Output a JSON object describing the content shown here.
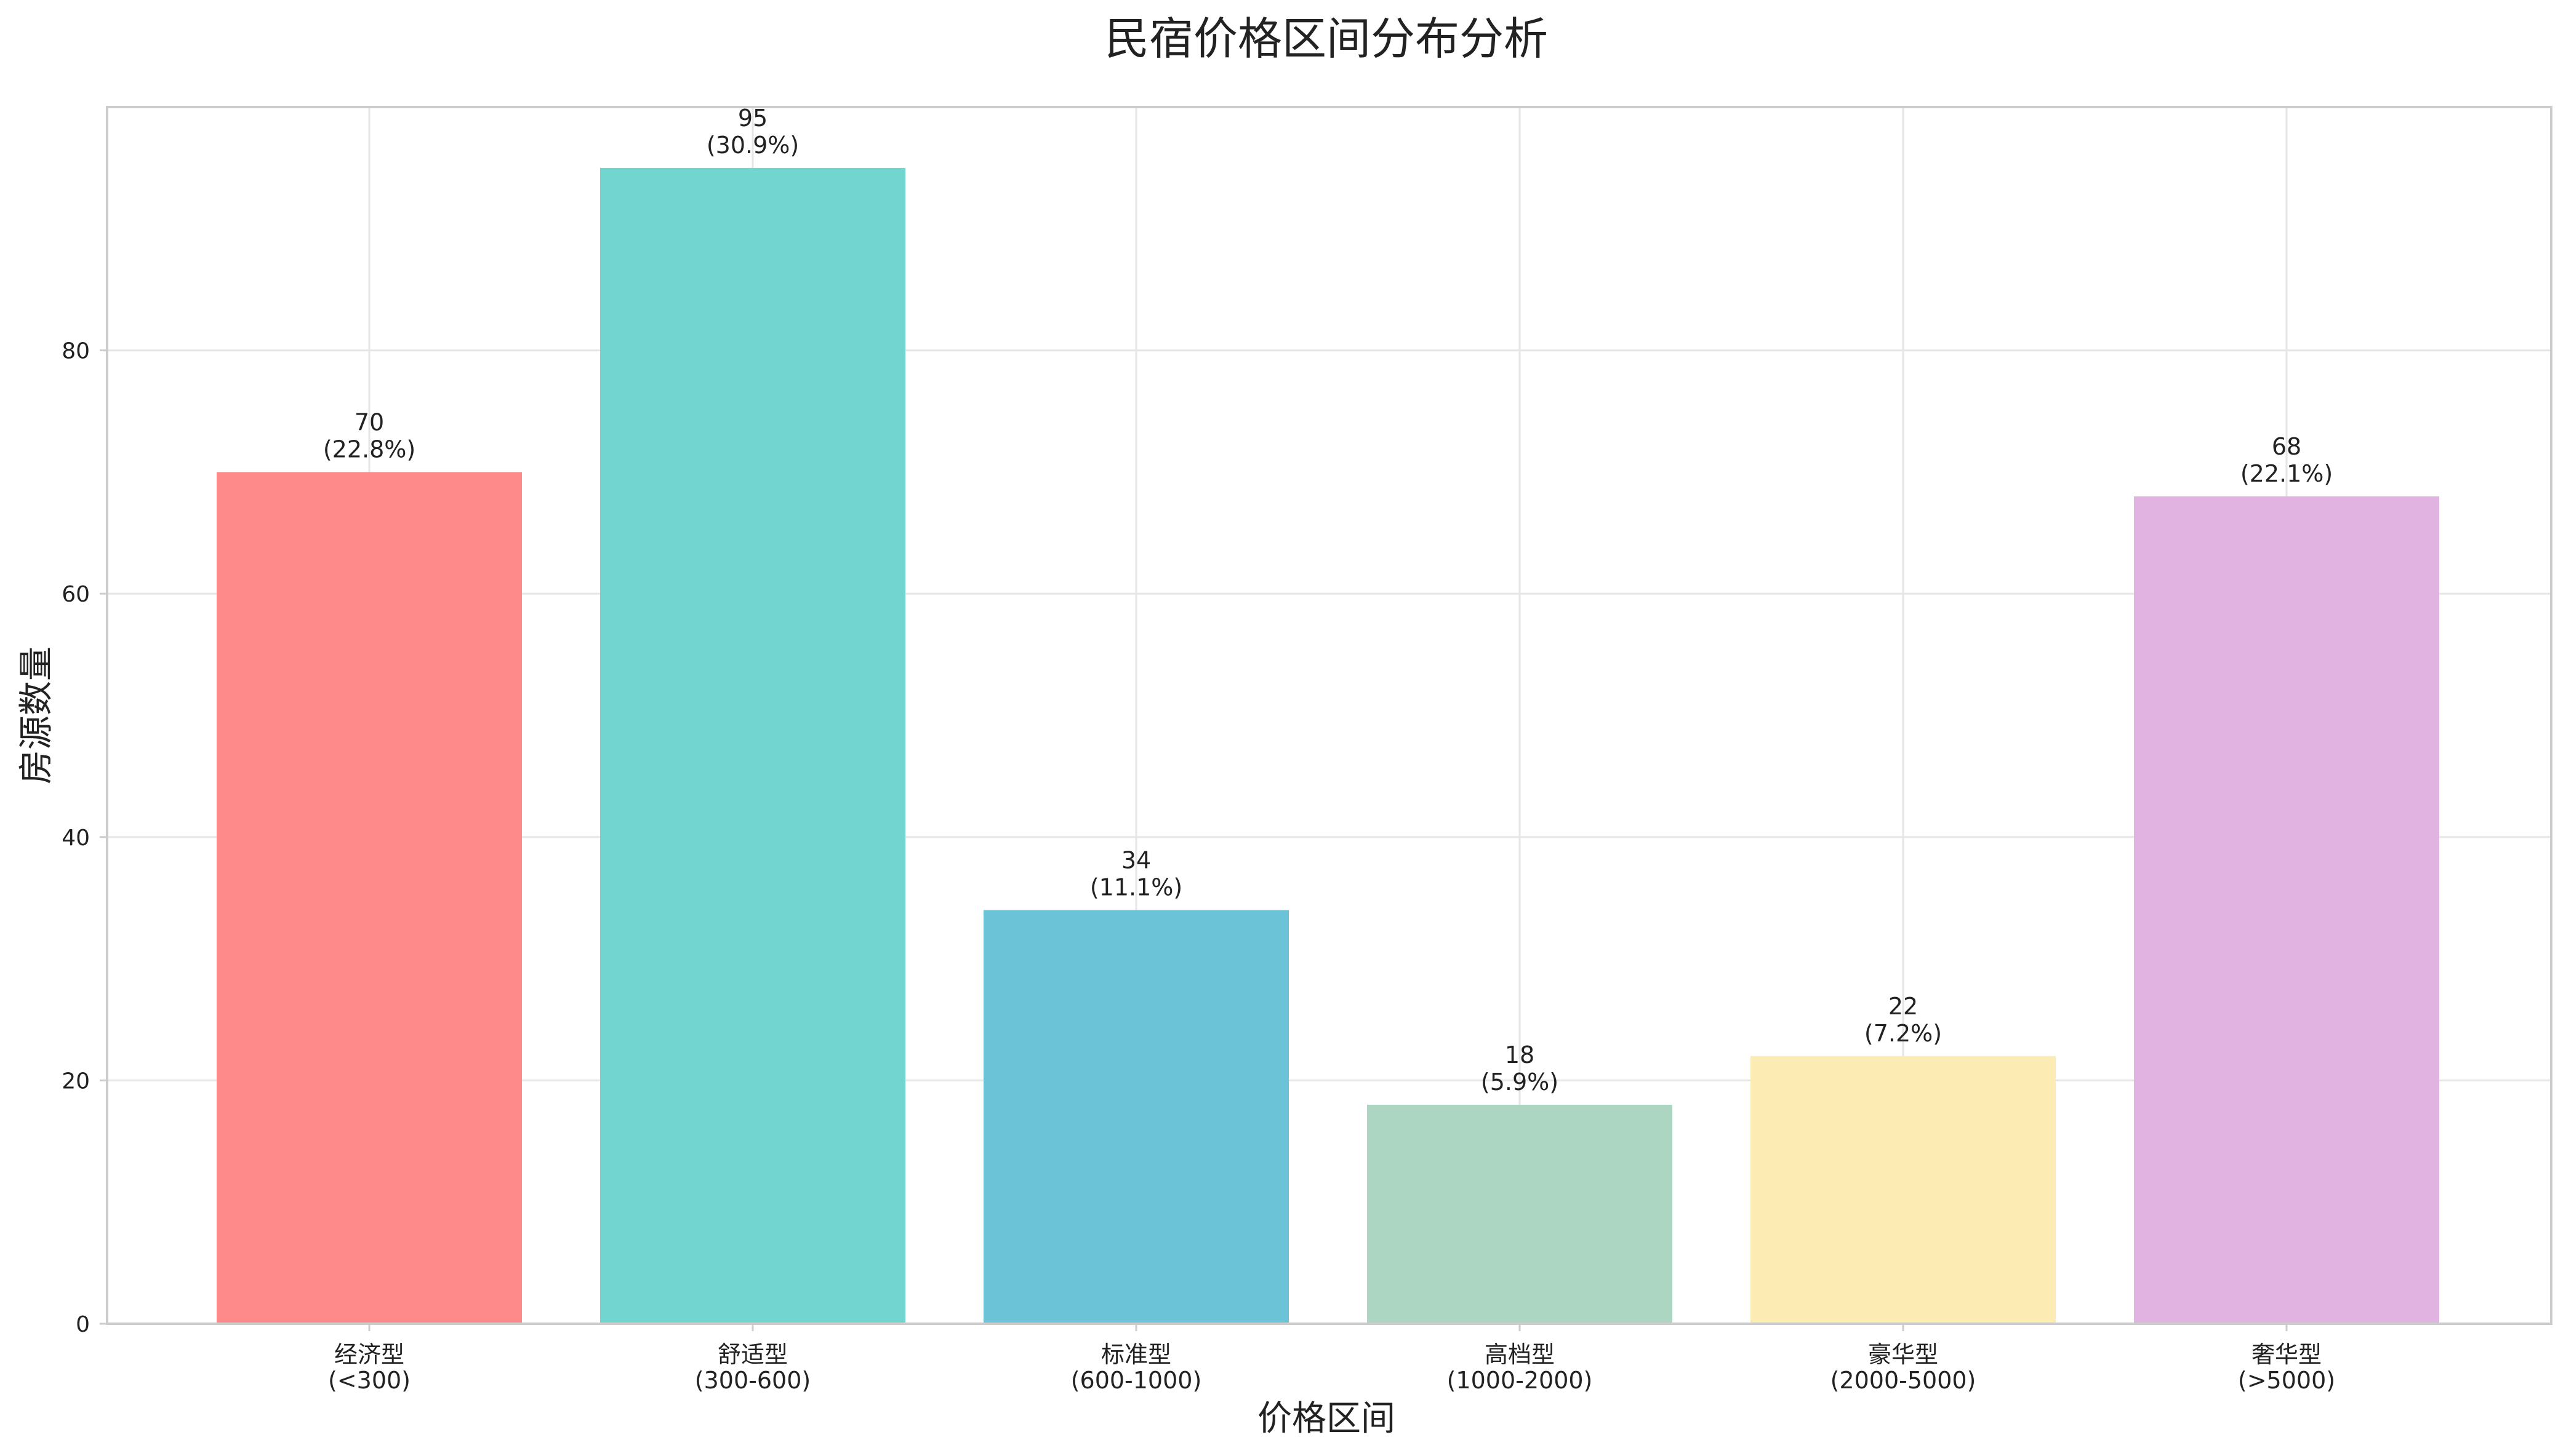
{
  "chart_data": {
    "type": "bar",
    "title": "民宿价格区间分布分析",
    "xlabel": "价格区间",
    "ylabel": "房源数量",
    "ylim": [
      0,
      100
    ],
    "yticks": [
      "0",
      "20",
      "40",
      "60",
      "80"
    ],
    "grid": true,
    "categories": [
      {
        "name": "经济型",
        "range": "(<300)"
      },
      {
        "name": "舒适型",
        "range": "(300-600)"
      },
      {
        "name": "标准型",
        "range": "(600-1000)"
      },
      {
        "name": "高档型",
        "range": "(1000-2000)"
      },
      {
        "name": "豪华型",
        "range": "(2000-5000)"
      },
      {
        "name": "奢华型",
        "range": "(>5000)"
      }
    ],
    "values": [
      70,
      95,
      34,
      18,
      22,
      68
    ],
    "value_labels": [
      "70",
      "95",
      "34",
      "18",
      "22",
      "68"
    ],
    "percent_labels": [
      "(22.8%)",
      "(30.9%)",
      "(11.1%)",
      "(5.9%)",
      "(7.2%)",
      "(22.1%)"
    ],
    "colors": [
      "#ff8a8a",
      "#73d5d0",
      "#6bc3d8",
      "#acd6c1",
      "#fdebb4",
      "#e0b3e1"
    ]
  }
}
